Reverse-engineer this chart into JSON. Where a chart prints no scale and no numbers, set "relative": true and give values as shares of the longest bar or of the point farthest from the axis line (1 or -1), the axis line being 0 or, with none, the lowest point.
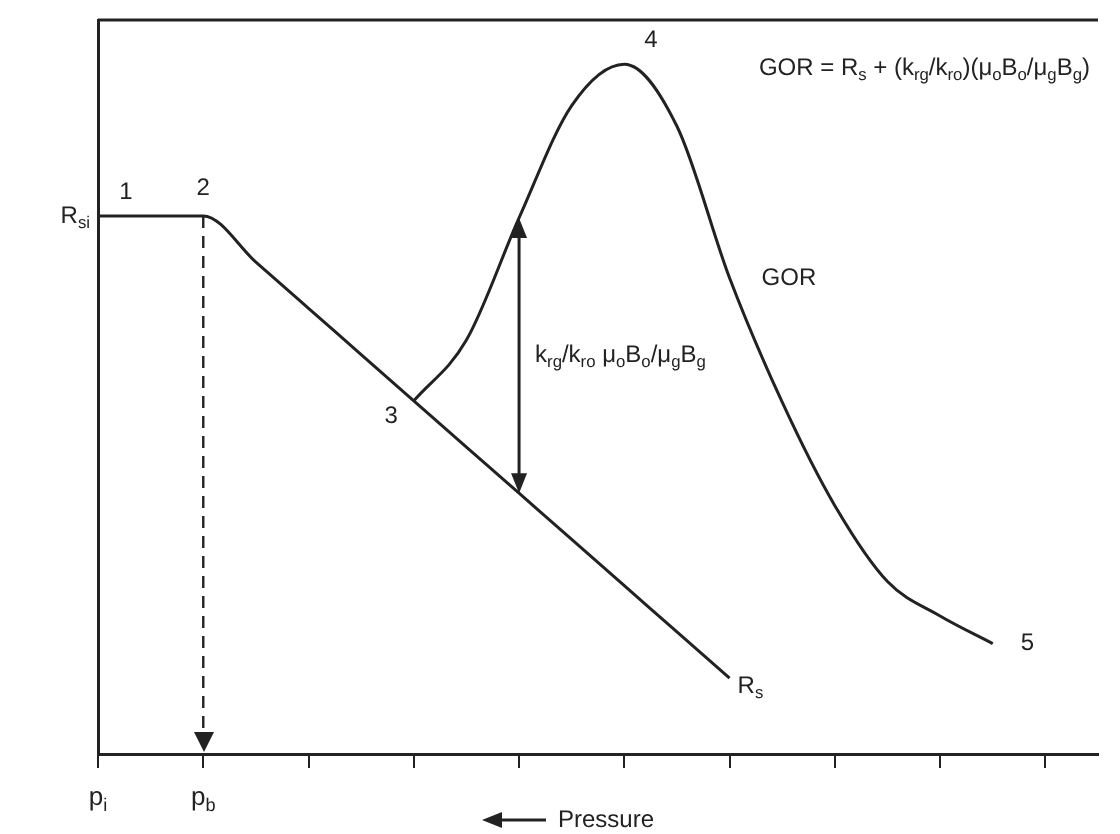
{
  "chart_data": {
    "type": "line",
    "relative": true,
    "xlabel": "Pressure",
    "categories": [
      "p$_{i}$",
      null,
      "p$_{b}$",
      null,
      null,
      null,
      null,
      null,
      null,
      null,
      null,
      null,
      null,
      null,
      null,
      null,
      null,
      null,
      null,
      null
    ],
    "series": [
      {
        "name": "R$_{s}$",
        "color": "#222222",
        "values": [
          0.78,
          0.78,
          0.78,
          0.713,
          0.646,
          0.579,
          0.512,
          0.445,
          0.378,
          0.311,
          0.244,
          0.177,
          0.11,
          null,
          null,
          null,
          null,
          null,
          null,
          null
        ]
      },
      {
        "name": "GOR",
        "color": "#222222",
        "values": [
          null,
          null,
          null,
          null,
          null,
          null,
          0.512,
          0.6,
          0.777,
          0.94,
          1.0,
          0.91,
          0.69,
          0.51,
          0.36,
          0.25,
          0.2,
          0.16,
          null,
          null
        ]
      }
    ],
    "ref_lines": [
      {
        "axis": "x",
        "value": "p$_{b}$",
        "line_style": "dashed",
        "color": "#222222"
      }
    ],
    "annotations": [
      "R$_{si}$",
      "1",
      "2",
      "3",
      "4",
      "5",
      "GOR = R$_{s}$ + (k$_{rg}$/k$_{ro}$)(μ$_{o}$B$_{o}$/μ$_{g}$B$_{g}$)",
      "k$_{rg}$/k$_{ro}$ μ$_{o}$B$_{o}$/μ$_{g}$B$_{g}$"
    ],
    "grid": false,
    "legend": false,
    "marker": "none",
    "line_style": "solid"
  }
}
